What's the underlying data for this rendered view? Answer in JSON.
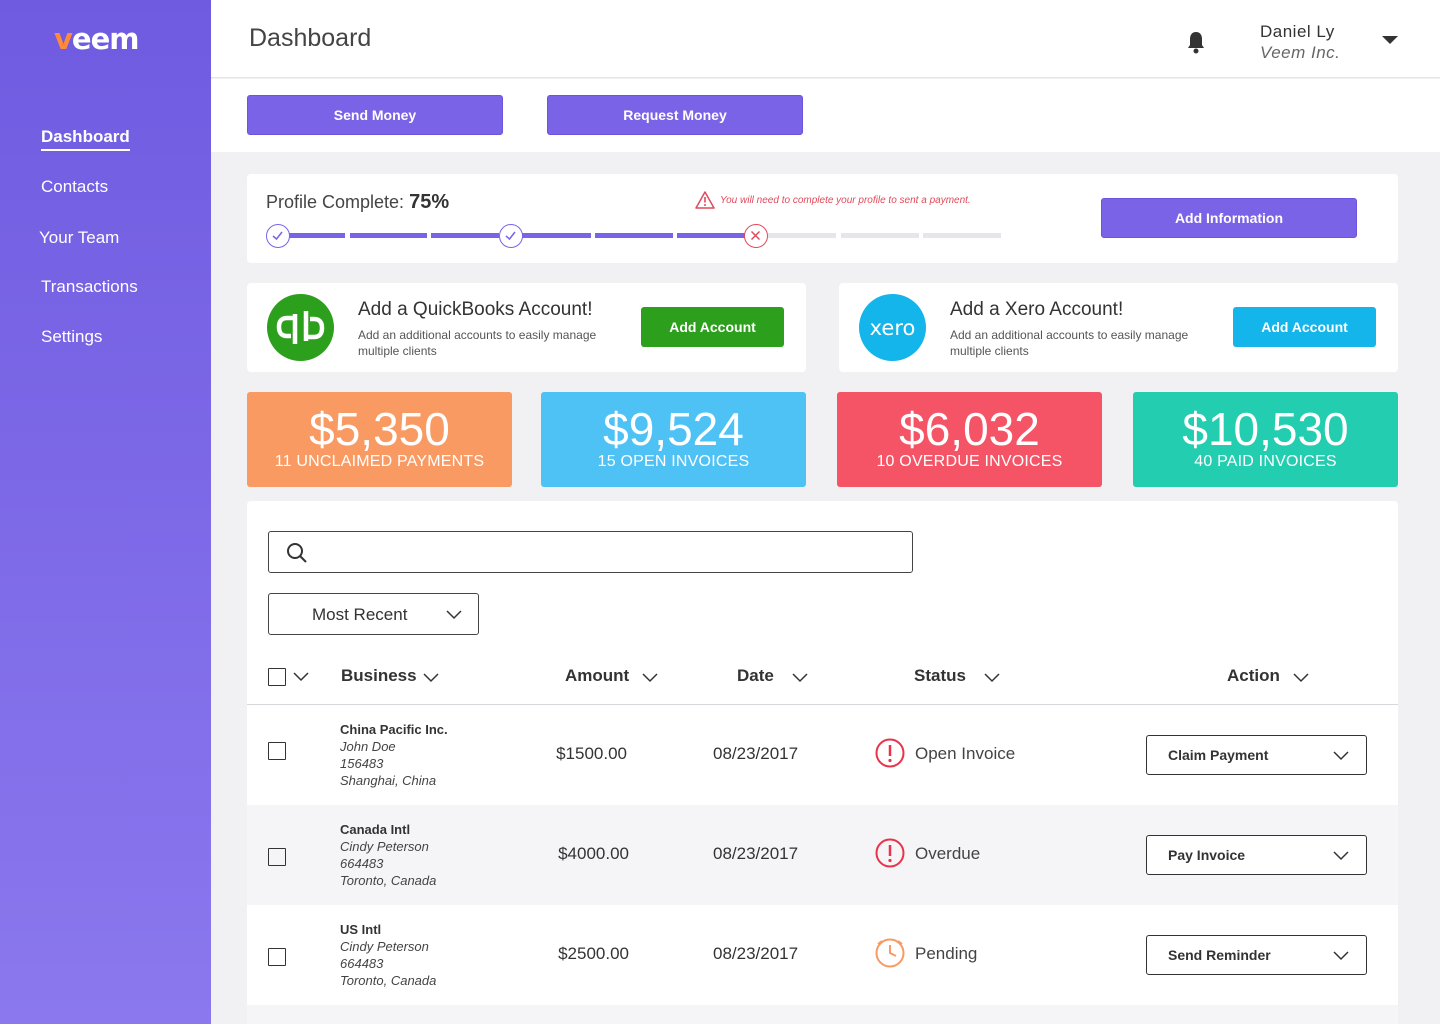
{
  "logo": {
    "v": "v",
    "rest": "eem"
  },
  "sidebar": {
    "items": [
      {
        "label": "Dashboard"
      },
      {
        "label": "Contacts"
      },
      {
        "label": "Your Team"
      },
      {
        "label": "Transactions"
      },
      {
        "label": "Settings"
      }
    ]
  },
  "header": {
    "title": "Dashboard",
    "user_name": "Daniel Ly",
    "user_company": "Veem Inc."
  },
  "actions": {
    "send_money": "Send Money",
    "request_money": "Request Money"
  },
  "profile": {
    "label": "Profile Complete:",
    "percent": "75%",
    "progress_fraction": 0.75,
    "warning": "You will need to complete your profile to sent a payment.",
    "add_info": "Add Information"
  },
  "quickbooks": {
    "title": "Add a QuickBooks Account!",
    "desc": "Add an additional accounts to easily manage multiple  clients",
    "button": "Add Account",
    "color": "#2ca01c"
  },
  "xero": {
    "title": "Add a Xero Account!",
    "desc": "Add an additional accounts to easily manage multiple  clients",
    "button": "Add Account",
    "logo_text": "xero",
    "color": "#13b5ea"
  },
  "stats": [
    {
      "amount": "$5,350",
      "label": "11 UNCLAIMED PAYMENTS",
      "color": "#f99a63"
    },
    {
      "amount": "$9,524",
      "label": "15 OPEN INVOICES",
      "color": "#4fc2f5"
    },
    {
      "amount": "$6,032",
      "label": "10 OVERDUE INVOICES",
      "color": "#f45466"
    },
    {
      "amount": "$10,530",
      "label": "40 PAID INVOICES",
      "color": "#22cdb0"
    }
  ],
  "search": {
    "placeholder": ""
  },
  "sort": {
    "selected": "Most Recent"
  },
  "table": {
    "columns": {
      "business": "Business",
      "amount": "Amount",
      "date": "Date",
      "status": "Status",
      "action": "Action"
    },
    "rows": [
      {
        "business": "China Pacific Inc.",
        "contact": "John Doe",
        "id": "156483",
        "location": "Shanghai, China",
        "amount": "$1500.00",
        "date": "08/23/2017",
        "status": "Open Invoice",
        "status_icon": "alert-icon",
        "action": "Claim Payment"
      },
      {
        "business": "Canada Intl",
        "contact": "Cindy Peterson",
        "id": "664483",
        "location": "Toronto, Canada",
        "amount": "$4000.00",
        "date": "08/23/2017",
        "status": "Overdue",
        "status_icon": "alert-icon",
        "action": "Pay Invoice"
      },
      {
        "business": "US Intl",
        "contact": "Cindy Peterson",
        "id": "664483",
        "location": "Toronto, Canada",
        "amount": "$2500.00",
        "date": "08/23/2017",
        "status": "Pending",
        "status_icon": "clock-icon",
        "action": "Send Reminder"
      }
    ]
  },
  "colors": {
    "accent": "#7a63e6",
    "alert": "#e8334a",
    "pending": "#f99a63"
  }
}
